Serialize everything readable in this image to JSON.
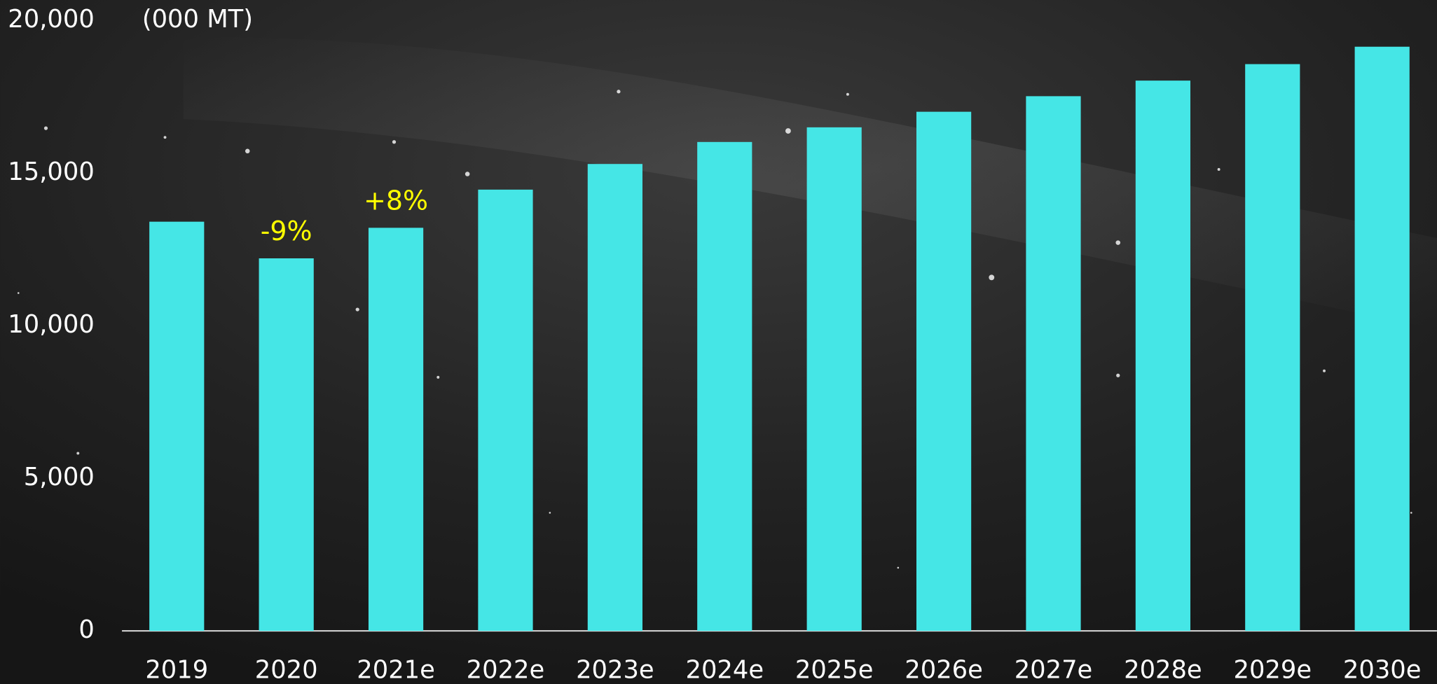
{
  "chart_data": {
    "type": "bar",
    "unit": "(000 MT)",
    "categories": [
      "2019",
      "2020",
      "2021e",
      "2022e",
      "2023e",
      "2024e",
      "2025e",
      "2026e",
      "2027e",
      "2028e",
      "2029e",
      "2030e"
    ],
    "values": [
      13400,
      12200,
      13200,
      14450,
      15290,
      16010,
      16490,
      17000,
      17510,
      18020,
      18560,
      19130
    ],
    "color": "#45e6e6",
    "ylim": [
      0,
      20000
    ],
    "yticks": [
      0,
      {
        "value": 5000,
        "label": "5,000"
      },
      {
        "value": 10000,
        "label": "10,000"
      },
      {
        "value": 15000,
        "label": "15,000"
      },
      {
        "value": 20000,
        "label": "20,000"
      }
    ],
    "grid": false,
    "annotations": [
      {
        "text": "-9%",
        "category": "2020",
        "color": "#ffff00"
      },
      {
        "text": "+8%",
        "category": "2021e",
        "color": "#ffff00"
      }
    ]
  }
}
